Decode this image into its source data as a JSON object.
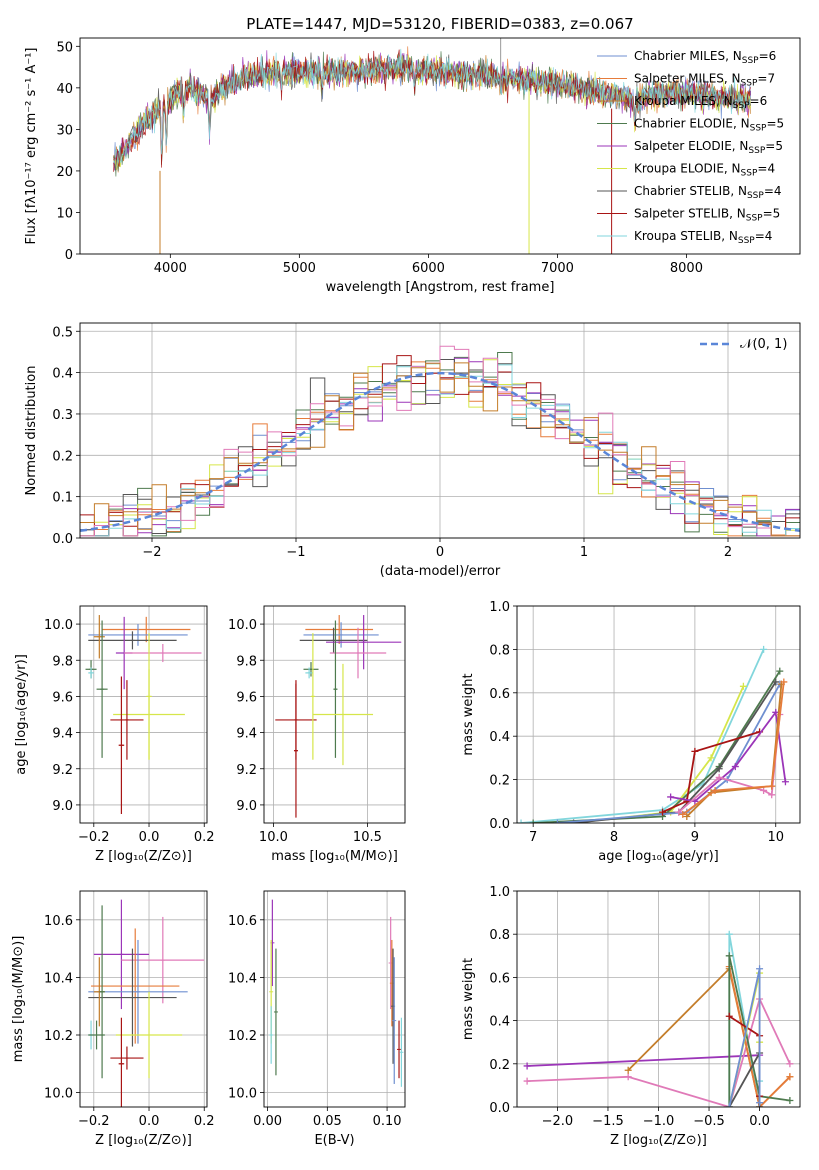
{
  "figure": {
    "title": "PLATE=1447, MJD=53120, FIBERID=0383, z=0.067"
  },
  "colors": {
    "chabrier_miles": "#6f8fd0",
    "salpeter_miles": "#e67c3b",
    "kroupa_miles": "#c47d2a",
    "chabrier_elodie": "#4e7a4e",
    "salpeter_elodie": "#9b35b8",
    "kroupa_elodie": "#d6e64a",
    "chabrier_stelib": "#555555",
    "salpeter_stelib": "#a81414",
    "kroupa_stelib": "#82d6dc",
    "pink": "#e07ab8",
    "gaussian": "#5a86d8"
  },
  "chart_data": [
    {
      "type": "line",
      "id": "spectrum",
      "xlabel": "wavelength [Angstrom, rest frame]",
      "ylabel": "Flux [fλ10⁻¹⁷ erg cm⁻² s⁻¹ A⁻¹]",
      "xlim": [
        3300,
        8880
      ],
      "ylim": [
        0,
        52
      ],
      "xticks": [
        4000,
        5000,
        6000,
        7000,
        8000
      ],
      "yticks": [
        0,
        10,
        20,
        30,
        40,
        50
      ],
      "legend_position": "top-right",
      "legend": [
        {
          "label": "Chabrier MILES, N",
          "sub": "SSP",
          "suffix": "=6",
          "color": "#6f8fd0"
        },
        {
          "label": "Salpeter MILES, N",
          "sub": "SSP",
          "suffix": "=7",
          "color": "#e67c3b"
        },
        {
          "label": "Kroupa MILES, N",
          "sub": "SSP",
          "suffix": "=6",
          "color": "#c47d2a"
        },
        {
          "label": "Chabrier ELODIE, N",
          "sub": "SSP",
          "suffix": "=5",
          "color": "#4e7a4e"
        },
        {
          "label": "Salpeter ELODIE, N",
          "sub": "SSP",
          "suffix": "=5",
          "color": "#9b35b8"
        },
        {
          "label": "Kroupa ELODIE, N",
          "sub": "SSP",
          "suffix": "=4",
          "color": "#d6e64a"
        },
        {
          "label": "Chabrier STELIB, N",
          "sub": "SSP",
          "suffix": "=4",
          "color": "#555555"
        },
        {
          "label": "Salpeter STELIB, N",
          "sub": "SSP",
          "suffix": "=5",
          "color": "#a81414"
        },
        {
          "label": "Kroupa STELIB, N",
          "sub": "SSP",
          "suffix": "=4",
          "color": "#82d6dc"
        }
      ],
      "continuum": {
        "x": [
          3560,
          3650,
          3750,
          3850,
          3950,
          4050,
          4150,
          4300,
          4450,
          4650,
          4900,
          5200,
          5500,
          5800,
          6100,
          6400,
          6700,
          7000,
          7300,
          7600,
          7900,
          8200,
          8500
        ],
        "y": [
          22,
          25,
          30,
          33,
          36,
          39,
          40,
          37,
          41,
          43,
          44,
          44,
          44,
          45,
          44,
          43,
          42,
          41,
          39,
          37,
          39,
          38,
          37
        ]
      }
    },
    {
      "type": "step",
      "id": "residuals",
      "xlabel": "(data-model)/error",
      "ylabel": "Normed distribution",
      "xlim": [
        -2.5,
        2.5
      ],
      "ylim": [
        0,
        0.52
      ],
      "xticks": [
        -2,
        -1,
        0,
        1,
        2
      ],
      "yticks": [
        0.0,
        0.1,
        0.2,
        0.3,
        0.4,
        0.5
      ],
      "legend": "𝒩(0, 1)",
      "gaussian": {
        "mean": 0,
        "sigma": 1
      }
    },
    {
      "type": "errorbar",
      "id": "age_vs_Z",
      "xlabel": "Z [log₁₀(Z/Z⊙)]",
      "ylabel": "age  [log₁₀(age/yr)]",
      "xlim": [
        -0.25,
        0.21
      ],
      "ylim": [
        8.9,
        10.1
      ],
      "xticks": [
        -0.2,
        0.0,
        0.2
      ],
      "yticks": [
        9.0,
        9.2,
        9.4,
        9.6,
        9.8,
        10.0
      ],
      "points": [
        {
          "x": -0.01,
          "xerr": 0.16,
          "y": 9.97,
          "yerr": 0.07,
          "color": "#e67c3b"
        },
        {
          "x": -0.04,
          "xerr": 0.18,
          "y": 9.94,
          "yerr": 0.06,
          "color": "#6f8fd0"
        },
        {
          "x": -0.06,
          "xerr": 0.16,
          "y": 9.91,
          "yerr": 0.05,
          "color": "#555555"
        },
        {
          "x": -0.18,
          "xerr": 0.02,
          "y": 9.93,
          "yerr": 0.12,
          "color": "#c47d2a"
        },
        {
          "x": -0.09,
          "xerr": 0.03,
          "y": 9.84,
          "yerr": 0.2,
          "color": "#9b35b8"
        },
        {
          "x": 0.05,
          "xerr": 0.14,
          "y": 9.84,
          "yerr": 0.05,
          "color": "#e07ab8"
        },
        {
          "x": -0.21,
          "xerr": 0.02,
          "y": 9.75,
          "yerr": 0.05,
          "color": "#4e7a4e"
        },
        {
          "x": -0.21,
          "xerr": 0.01,
          "y": 9.73,
          "yerr": 0.03,
          "color": "#82d6dc"
        },
        {
          "x": -0.17,
          "xerr": 0.02,
          "y": 9.64,
          "yerr": 0.38,
          "color": "#4e7a4e"
        },
        {
          "x": 0.0,
          "xerr": 0.13,
          "y": 9.5,
          "yerr": 0.25,
          "color": "#d6e64a"
        },
        {
          "x": -0.08,
          "xerr": 0.06,
          "y": 9.47,
          "yerr": 0.22,
          "color": "#a81414"
        },
        {
          "x": -0.1,
          "xerr": 0.01,
          "y": 9.33,
          "yerr": 0.38,
          "color": "#a81414"
        },
        {
          "x": 0.0,
          "xerr": 0.01,
          "y": 9.6,
          "yerr": 0.35,
          "color": "#d6e64a"
        }
      ]
    },
    {
      "type": "errorbar",
      "id": "age_vs_mass",
      "xlabel": "mass [log₁₀(M/M⊙)]",
      "ylabel": "",
      "xlim": [
        9.95,
        10.7
      ],
      "ylim": [
        8.9,
        10.1
      ],
      "xticks": [
        10.0,
        10.5
      ],
      "yticks": [
        9.0,
        9.2,
        9.4,
        9.6,
        9.8,
        10.0
      ],
      "points": [
        {
          "x": 10.35,
          "xerr": 0.18,
          "y": 9.97,
          "yerr": 0.08,
          "color": "#e67c3b"
        },
        {
          "x": 10.36,
          "xerr": 0.2,
          "y": 9.94,
          "yerr": 0.07,
          "color": "#6f8fd0"
        },
        {
          "x": 10.32,
          "xerr": 0.18,
          "y": 9.91,
          "yerr": 0.07,
          "color": "#555555"
        },
        {
          "x": 10.48,
          "xerr": 0.2,
          "y": 9.9,
          "yerr": 0.15,
          "color": "#9b35b8"
        },
        {
          "x": 10.45,
          "xerr": 0.15,
          "y": 9.84,
          "yerr": 0.14,
          "color": "#e07ab8"
        },
        {
          "x": 10.2,
          "xerr": 0.04,
          "y": 9.75,
          "yerr": 0.04,
          "color": "#4e7a4e"
        },
        {
          "x": 10.19,
          "xerr": 0.02,
          "y": 9.73,
          "yerr": 0.03,
          "color": "#82d6dc"
        },
        {
          "x": 10.33,
          "xerr": 0.01,
          "y": 9.64,
          "yerr": 0.38,
          "color": "#4e7a4e"
        },
        {
          "x": 10.37,
          "xerr": 0.16,
          "y": 9.5,
          "yerr": 0.28,
          "color": "#d6e64a"
        },
        {
          "x": 10.12,
          "xerr": 0.11,
          "y": 9.47,
          "yerr": 0.22,
          "color": "#a81414"
        },
        {
          "x": 10.12,
          "xerr": 0.01,
          "y": 9.3,
          "yerr": 0.37,
          "color": "#a81414"
        },
        {
          "x": 10.21,
          "xerr": 0.01,
          "y": 9.6,
          "yerr": 0.35,
          "color": "#d6e64a"
        }
      ]
    },
    {
      "type": "line",
      "id": "weight_vs_age",
      "xlabel": "age  [log₁₀(age/yr)]",
      "ylabel": "mass weight",
      "xlim": [
        6.8,
        10.3
      ],
      "ylim": [
        0,
        1
      ],
      "xticks": [
        7,
        8,
        9,
        10
      ],
      "yticks": [
        0.0,
        0.2,
        0.4,
        0.6,
        0.8,
        1.0
      ],
      "series": [
        {
          "color": "#82d6dc",
          "x": [
            6.85,
            8.6,
            9.1,
            9.85
          ],
          "y": [
            0.0,
            0.06,
            0.18,
            0.8
          ]
        },
        {
          "color": "#d6e64a",
          "x": [
            7.5,
            8.7,
            9.2,
            9.6
          ],
          "y": [
            0.0,
            0.05,
            0.3,
            0.63
          ]
        },
        {
          "color": "#4e7a4e",
          "x": [
            7.0,
            8.6,
            9.3,
            10.05
          ],
          "y": [
            0.0,
            0.03,
            0.26,
            0.7
          ]
        },
        {
          "color": "#555555",
          "x": [
            7.5,
            8.8,
            9.3,
            10.0
          ],
          "y": [
            0.0,
            0.05,
            0.25,
            0.65
          ]
        },
        {
          "color": "#6f8fd0",
          "x": [
            7.3,
            8.9,
            9.4,
            10.05
          ],
          "y": [
            0.0,
            0.05,
            0.2,
            0.64
          ]
        },
        {
          "color": "#a81414",
          "x": [
            8.6,
            8.9,
            9.0,
            9.8
          ],
          "y": [
            0.05,
            0.1,
            0.33,
            0.42
          ]
        },
        {
          "color": "#9b35b8",
          "x": [
            8.7,
            9.0,
            9.5,
            10.0,
            10.12
          ],
          "y": [
            0.12,
            0.1,
            0.26,
            0.51,
            0.19
          ]
        },
        {
          "color": "#e07ab8",
          "x": [
            8.8,
            9.3,
            9.85,
            9.95,
            10.05
          ],
          "y": [
            0.05,
            0.21,
            0.15,
            0.13,
            0.5
          ]
        },
        {
          "color": "#c47d2a",
          "x": [
            8.9,
            9.2,
            9.95,
            10.07
          ],
          "y": [
            0.03,
            0.14,
            0.17,
            0.64
          ]
        },
        {
          "color": "#e67c3b",
          "x": [
            8.85,
            9.25,
            9.95,
            10.1
          ],
          "y": [
            0.04,
            0.15,
            0.17,
            0.65
          ]
        }
      ]
    },
    {
      "type": "errorbar",
      "id": "mass_vs_Z",
      "xlabel": "Z [log₁₀(Z/Z⊙)]",
      "ylabel": "mass [log₁₀(M/M⊙)]",
      "xlim": [
        -0.25,
        0.21
      ],
      "ylim": [
        9.95,
        10.7
      ],
      "xticks": [
        -0.2,
        0.0,
        0.2
      ],
      "yticks": [
        10.0,
        10.2,
        10.4,
        10.6
      ],
      "points": [
        {
          "x": -0.1,
          "xerr": 0.1,
          "y": 10.48,
          "yerr": 0.19,
          "color": "#9b35b8"
        },
        {
          "x": 0.05,
          "xerr": 0.15,
          "y": 10.46,
          "yerr": 0.15,
          "color": "#e07ab8"
        },
        {
          "x": -0.05,
          "xerr": 0.16,
          "y": 10.37,
          "yerr": 0.2,
          "color": "#e67c3b"
        },
        {
          "x": -0.04,
          "xerr": 0.18,
          "y": 10.35,
          "yerr": 0.18,
          "color": "#6f8fd0"
        },
        {
          "x": -0.06,
          "xerr": 0.16,
          "y": 10.33,
          "yerr": 0.17,
          "color": "#555555"
        },
        {
          "x": -0.18,
          "xerr": 0.02,
          "y": 10.35,
          "yerr": 0.12,
          "color": "#c47d2a"
        },
        {
          "x": -0.21,
          "xerr": 0.01,
          "y": 10.2,
          "yerr": 0.05,
          "color": "#82d6dc"
        },
        {
          "x": -0.19,
          "xerr": 0.03,
          "y": 10.2,
          "yerr": 0.05,
          "color": "#4e7a4e"
        },
        {
          "x": 0.0,
          "xerr": 0.12,
          "y": 10.2,
          "yerr": 0.15,
          "color": "#d6e64a"
        },
        {
          "x": -0.08,
          "xerr": 0.06,
          "y": 10.12,
          "yerr": 0.04,
          "color": "#a81414"
        },
        {
          "x": -0.1,
          "xerr": 0.01,
          "y": 10.1,
          "yerr": 0.16,
          "color": "#a81414"
        },
        {
          "x": -0.17,
          "xerr": 0.01,
          "y": 10.35,
          "yerr": 0.3,
          "color": "#4e7a4e"
        }
      ]
    },
    {
      "type": "errorbar",
      "id": "mass_vs_ebv",
      "xlabel": "E(B-V)",
      "ylabel": "",
      "xlim": [
        -0.003,
        0.115
      ],
      "ylim": [
        9.95,
        10.7
      ],
      "xticks": [
        0.0,
        0.05,
        0.1
      ],
      "yticks": [
        10.0,
        10.2,
        10.4,
        10.6
      ],
      "points": [
        {
          "x": 0.004,
          "xerr": 0.0,
          "y": 10.52,
          "yerr": 0.15,
          "color": "#9b35b8"
        },
        {
          "x": 0.003,
          "xerr": 0.0,
          "y": 10.35,
          "yerr": 0.18,
          "color": "#d6e64a"
        },
        {
          "x": 0.007,
          "xerr": 0.0,
          "y": 10.28,
          "yerr": 0.22,
          "color": "#4e7a4e"
        },
        {
          "x": 0.003,
          "xerr": 0.0,
          "y": 10.2,
          "yerr": 0.1,
          "color": "#82d6dc"
        },
        {
          "x": 0.103,
          "xerr": 0.0,
          "y": 10.45,
          "yerr": 0.16,
          "color": "#e07ab8"
        },
        {
          "x": 0.104,
          "xerr": 0.0,
          "y": 10.38,
          "yerr": 0.15,
          "color": "#e67c3b"
        },
        {
          "x": 0.105,
          "xerr": 0.0,
          "y": 10.3,
          "yerr": 0.2,
          "color": "#555555"
        },
        {
          "x": 0.106,
          "xerr": 0.0,
          "y": 10.25,
          "yerr": 0.22,
          "color": "#6f8fd0"
        },
        {
          "x": 0.11,
          "xerr": 0.0,
          "y": 10.15,
          "yerr": 0.1,
          "color": "#a81414"
        },
        {
          "x": 0.112,
          "xerr": 0.0,
          "y": 10.14,
          "yerr": 0.12,
          "color": "#82d6dc"
        }
      ]
    },
    {
      "type": "line",
      "id": "weight_vs_Z",
      "xlabel": "Z [log₁₀(Z/Z⊙)]",
      "ylabel": "mass weight",
      "xlim": [
        -2.4,
        0.4
      ],
      "ylim": [
        0,
        1
      ],
      "xticks": [
        -2.0,
        -1.5,
        -1.0,
        -0.5,
        0.0
      ],
      "yticks": [
        0.0,
        0.2,
        0.4,
        0.6,
        0.8,
        1.0
      ],
      "series": [
        {
          "color": "#82d6dc",
          "x": [
            -0.3,
            -0.3,
            0.0,
            0.0
          ],
          "y": [
            0.0,
            0.8,
            0.0,
            0.12
          ]
        },
        {
          "color": "#9b35b8",
          "x": [
            -2.3,
            0.0
          ],
          "y": [
            0.19,
            0.24
          ]
        },
        {
          "color": "#e07ab8",
          "x": [
            -2.3,
            -1.3,
            -0.3,
            0.0,
            0.3
          ],
          "y": [
            0.12,
            0.14,
            0.0,
            0.5,
            0.2
          ]
        },
        {
          "color": "#c47d2a",
          "x": [
            -1.3,
            -0.3,
            0.0,
            0.3
          ],
          "y": [
            0.17,
            0.64,
            0.0,
            0.14
          ]
        },
        {
          "color": "#e67c3b",
          "x": [
            -0.3,
            0.0,
            0.3
          ],
          "y": [
            0.65,
            0.0,
            0.14
          ]
        },
        {
          "color": "#4e7a4e",
          "x": [
            -0.3,
            -0.3,
            0.0,
            0.3
          ],
          "y": [
            0.0,
            0.7,
            0.05,
            0.03
          ]
        },
        {
          "color": "#a81414",
          "x": [
            -0.3,
            0.0,
            0.0
          ],
          "y": [
            0.42,
            0.33,
            0.05
          ]
        },
        {
          "color": "#d6e64a",
          "x": [
            -0.3,
            0.0,
            0.0
          ],
          "y": [
            0.0,
            0.62,
            0.3
          ]
        },
        {
          "color": "#555555",
          "x": [
            -0.3,
            0.0,
            0.0
          ],
          "y": [
            0.0,
            0.25,
            0.0
          ]
        },
        {
          "color": "#6f8fd0",
          "x": [
            -0.3,
            0.0,
            0.0
          ],
          "y": [
            0.0,
            0.64,
            0.02
          ]
        }
      ]
    }
  ]
}
